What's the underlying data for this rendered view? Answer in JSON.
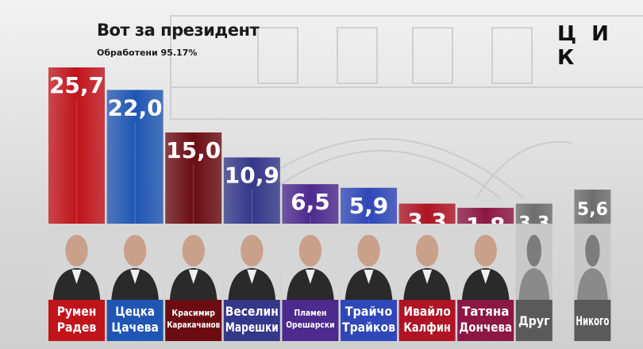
{
  "header": {
    "title": "Вот за президент",
    "subtitle": "Обработени 95.17%",
    "brand": "Ц И К"
  },
  "chart_data": {
    "type": "bar",
    "title": "Вот за президент",
    "subtitle": "Обработени 95.17%",
    "categories": [
      [
        "Румен",
        "Радев"
      ],
      [
        "Цецка",
        "Цачева"
      ],
      [
        "Красимир",
        "Каракачанов"
      ],
      [
        "Веселин",
        "Марешки"
      ],
      [
        "Пламен",
        "Орешарски"
      ],
      [
        "Трайчо",
        "Трайков"
      ],
      [
        "Ивайло",
        "Калфин"
      ],
      [
        "Татяна",
        "Дончева"
      ],
      [
        "Друг"
      ],
      [
        "Никого"
      ]
    ],
    "values": [
      25.7,
      22.0,
      15.0,
      10.9,
      6.5,
      5.9,
      3.3,
      1.8,
      3.3,
      5.6
    ],
    "value_labels": [
      "25,7",
      "22,0",
      "15,0",
      "10,9",
      "6,5",
      "5,9",
      "3,3",
      "1,8",
      "3,3",
      "5,6"
    ],
    "colors": [
      "#c0141b",
      "#1f56b3",
      "#6b0c12",
      "#34378a",
      "#4d2a8e",
      "#2f47b8",
      "#b01424",
      "#8c1743",
      "#6e6e6e",
      "#6e6e6e"
    ],
    "label_colors": [
      "#c0141b",
      "#1f56b3",
      "#6b0c12",
      "#34378a",
      "#4d2a8e",
      "#2f47b8",
      "#b01424",
      "#8c1743",
      "#5a5a5a",
      "#5a5a5a"
    ],
    "photo_icons": [
      "person-icon",
      "person-icon",
      "person-icon",
      "person-icon",
      "person-icon",
      "person-icon",
      "person-icon",
      "person-icon",
      "silhouette-icon",
      "silhouette-icon"
    ],
    "ylim": [
      0,
      25.7
    ],
    "xlabel": "",
    "ylabel": "",
    "grid": false,
    "legend": "none"
  }
}
